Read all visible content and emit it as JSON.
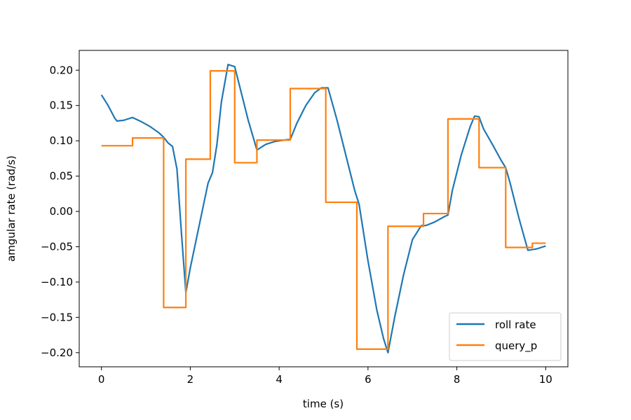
{
  "chart_data": {
    "type": "line",
    "title": "",
    "xlabel": "time (s)",
    "ylabel": "amgular rate (rad/s)",
    "xlim": [
      -0.5,
      10.5
    ],
    "ylim": [
      -0.22,
      0.228
    ],
    "xticks": [
      0,
      2,
      4,
      6,
      8,
      10
    ],
    "xtick_labels": [
      "0",
      "2",
      "4",
      "6",
      "8",
      "10"
    ],
    "yticks": [
      0.2,
      0.15,
      0.1,
      0.05,
      0.0,
      -0.05,
      -0.1,
      -0.15,
      -0.2
    ],
    "ytick_labels": [
      "0.20",
      "0.15",
      "0.10",
      "0.05",
      "0.00",
      "−0.05",
      "−0.10",
      "−0.15",
      "−0.20"
    ],
    "grid": false,
    "legend_position": "lower-right",
    "series": [
      {
        "name": "roll rate",
        "color": "#1f77b4",
        "points": [
          [
            0.0,
            0.165
          ],
          [
            0.15,
            0.15
          ],
          [
            0.3,
            0.132
          ],
          [
            0.35,
            0.128
          ],
          [
            0.5,
            0.129
          ],
          [
            0.7,
            0.133
          ],
          [
            0.9,
            0.127
          ],
          [
            1.1,
            0.12
          ],
          [
            1.3,
            0.111
          ],
          [
            1.4,
            0.105
          ],
          [
            1.5,
            0.097
          ],
          [
            1.6,
            0.092
          ],
          [
            1.7,
            0.06
          ],
          [
            1.8,
            -0.03
          ],
          [
            1.9,
            -0.115
          ],
          [
            2.0,
            -0.08
          ],
          [
            2.2,
            -0.02
          ],
          [
            2.4,
            0.04
          ],
          [
            2.5,
            0.055
          ],
          [
            2.6,
            0.095
          ],
          [
            2.7,
            0.155
          ],
          [
            2.85,
            0.208
          ],
          [
            3.0,
            0.205
          ],
          [
            3.1,
            0.18
          ],
          [
            3.3,
            0.13
          ],
          [
            3.5,
            0.087
          ],
          [
            3.7,
            0.095
          ],
          [
            3.9,
            0.099
          ],
          [
            4.1,
            0.101
          ],
          [
            4.25,
            0.102
          ],
          [
            4.4,
            0.125
          ],
          [
            4.6,
            0.15
          ],
          [
            4.8,
            0.168
          ],
          [
            4.95,
            0.175
          ],
          [
            5.1,
            0.175
          ],
          [
            5.3,
            0.13
          ],
          [
            5.5,
            0.08
          ],
          [
            5.7,
            0.03
          ],
          [
            5.8,
            0.01
          ],
          [
            6.0,
            -0.07
          ],
          [
            6.2,
            -0.14
          ],
          [
            6.35,
            -0.18
          ],
          [
            6.45,
            -0.2
          ],
          [
            6.6,
            -0.15
          ],
          [
            6.8,
            -0.09
          ],
          [
            7.0,
            -0.04
          ],
          [
            7.2,
            -0.02
          ],
          [
            7.3,
            -0.02
          ],
          [
            7.5,
            -0.015
          ],
          [
            7.7,
            -0.008
          ],
          [
            7.8,
            -0.005
          ],
          [
            7.9,
            0.03
          ],
          [
            8.1,
            0.08
          ],
          [
            8.3,
            0.12
          ],
          [
            8.4,
            0.135
          ],
          [
            8.5,
            0.134
          ],
          [
            8.6,
            0.117
          ],
          [
            8.8,
            0.095
          ],
          [
            9.0,
            0.072
          ],
          [
            9.1,
            0.062
          ],
          [
            9.2,
            0.04
          ],
          [
            9.4,
            -0.01
          ],
          [
            9.6,
            -0.055
          ],
          [
            9.8,
            -0.053
          ],
          [
            10.0,
            -0.049
          ]
        ]
      },
      {
        "name": "query_p",
        "color": "#ff7f0e",
        "steps": [
          [
            0.0,
            0.093
          ],
          [
            0.7,
            0.104
          ],
          [
            1.4,
            -0.136
          ],
          [
            1.9,
            0.074
          ],
          [
            2.45,
            0.199
          ],
          [
            3.0,
            0.069
          ],
          [
            3.5,
            0.101
          ],
          [
            4.25,
            0.174
          ],
          [
            5.05,
            0.013
          ],
          [
            5.75,
            -0.195
          ],
          [
            6.45,
            -0.021
          ],
          [
            7.25,
            -0.003
          ],
          [
            7.8,
            0.131
          ],
          [
            8.5,
            0.062
          ],
          [
            9.1,
            -0.051
          ],
          [
            9.7,
            -0.045
          ],
          [
            10.0,
            -0.045
          ]
        ]
      }
    ]
  }
}
